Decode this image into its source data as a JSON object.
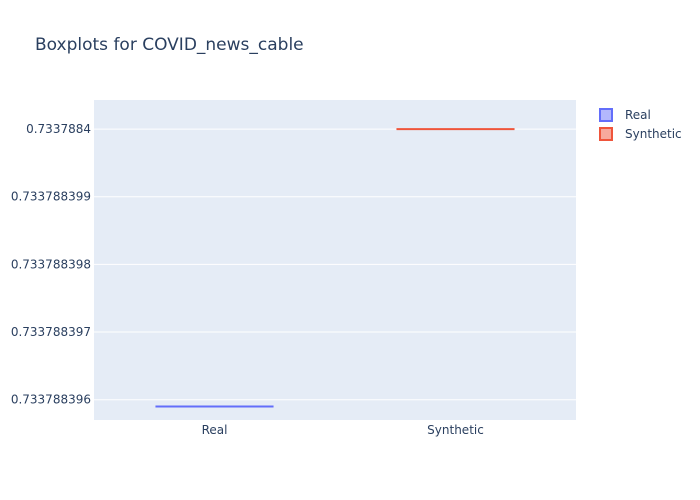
{
  "chart_data": {
    "type": "box",
    "title": "Boxplots for COVID_news_cable",
    "categories": [
      "Real",
      "Synthetic"
    ],
    "series": [
      {
        "name": "Real",
        "values": [
          0.7337883959
        ],
        "line_color": "#636efa",
        "fill_color": "#b3b7fd"
      },
      {
        "name": "Synthetic",
        "values": [
          0.7337884
        ],
        "line_color": "#ef553b",
        "fill_color": "#f7a99c"
      }
    ],
    "y_ticks": [
      {
        "value": 0.733788396,
        "label": "0.733788396"
      },
      {
        "value": 0.733788397,
        "label": "0.733788397"
      },
      {
        "value": 0.733788398,
        "label": "0.733788398"
      },
      {
        "value": 0.733788399,
        "label": "0.733788399"
      },
      {
        "value": 0.7337884,
        "label": "0.7337884"
      }
    ],
    "ylim": [
      0.7337883957,
      0.73378840043
    ],
    "grid": true,
    "legend_position": "top-right",
    "plot_bg": "#e5ecf6",
    "grid_color": "#ffffff"
  }
}
